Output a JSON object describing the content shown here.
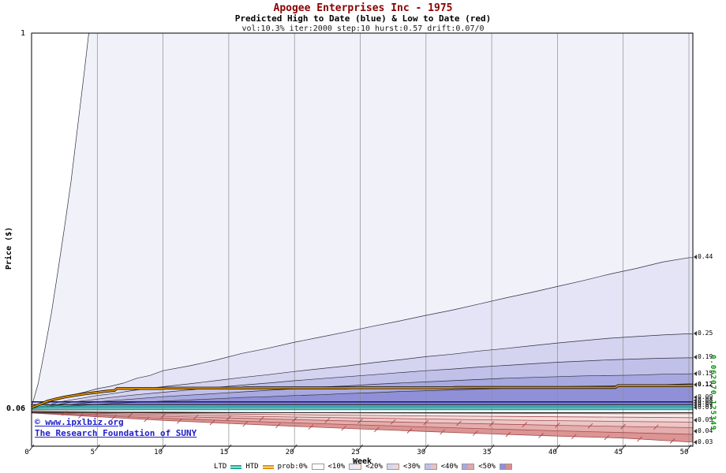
{
  "title": {
    "line1": "Apogee Enterprises Inc - 1975",
    "line2": "Predicted High to Date (blue) &  Low to Date (red)",
    "line3": "vol:10.3% iter:2000 step:10 hurst:0.57 drift:0.07/0"
  },
  "axes": {
    "y_label": "Price ($)",
    "x_label": "Week",
    "y_top": "1",
    "y_start": "0.06",
    "x_ticks": [
      "0",
      "5",
      "10",
      "15",
      "20",
      "25",
      "30",
      "35",
      "40",
      "45",
      "50"
    ]
  },
  "watermark": {
    "line1": "© www.ipxlbiz.org",
    "line2": "The Research Foundation of SUNY"
  },
  "right_green_label": "0.062070.125349",
  "right_labels": [
    {
      "text": "0.44",
      "price": 0.44
    },
    {
      "text": "0.25",
      "price": 0.25
    },
    {
      "text": "0.19",
      "price": 0.19
    },
    {
      "text": "0.15",
      "price": 0.15
    },
    {
      "text": "0.12",
      "price": 0.121,
      "bold": true
    },
    {
      "text": "0.09",
      "price": 0.0905
    },
    {
      "text": "0.08",
      "price": 0.0825
    },
    {
      "text": "0.08",
      "price": 0.0762
    },
    {
      "text": "0.07",
      "price": 0.0706
    },
    {
      "text": "0.07",
      "price": 0.0652
    },
    {
      "text": "0.05",
      "price": 0.0502
    },
    {
      "text": "0.04",
      "price": 0.0402
    },
    {
      "text": "0.03",
      "price": 0.0305
    }
  ],
  "legend": {
    "ltd_label": "LTD",
    "ltd_color": "#18a898",
    "htd_label": "HTD",
    "htd_color": "#e09000",
    "prob_items": [
      {
        "label": "prob:0%",
        "blue": "#ffffff",
        "red": "#ffffff"
      },
      {
        "label": "<10%",
        "blue": "#e9e9f8",
        "red": "#f8e9e9"
      },
      {
        "label": "<20%",
        "blue": "#d6d6f1",
        "red": "#f1d6d6"
      },
      {
        "label": "<30%",
        "blue": "#c0c0ea",
        "red": "#eac0c0"
      },
      {
        "label": "<40%",
        "blue": "#a8a8e2",
        "red": "#e2a8a8"
      },
      {
        "label": "<50%",
        "blue": "#8f8fd8",
        "red": "#d88f8f"
      }
    ]
  },
  "chart_data": {
    "type": "area",
    "title": "Apogee Enterprises Inc - 1975, predicted high-to-date / low-to-date probability fan",
    "xlabel": "Week",
    "ylabel": "Price ($)",
    "xlim": [
      0,
      50
    ],
    "ylim": [
      0.03,
      1.0
    ],
    "start_price": 0.06,
    "gridline_weeks": [
      0,
      5,
      10,
      15,
      20,
      25,
      30,
      35,
      40,
      45,
      50
    ],
    "baseline_high": 0.0645,
    "baseline_low": 0.0596,
    "band_colors_high": [
      "#f1f1fa",
      "#e4e4f6",
      "#d4d4f0",
      "#c0c0e9",
      "#a9a9e1",
      "#9090d8"
    ],
    "band_colors_low": [
      "#fdf6f6",
      "#faeaea",
      "#f4dada",
      "#edc6c6",
      "#e5adad",
      "#dc9494"
    ],
    "high_envelopes": [
      {
        "prob": "0%",
        "points": [
          [
            0,
            0.068
          ],
          [
            0.5,
            0.125
          ],
          [
            1,
            0.21
          ],
          [
            1.5,
            0.3
          ],
          [
            2,
            0.405
          ],
          [
            2.5,
            0.515
          ],
          [
            3,
            0.63
          ],
          [
            3.5,
            0.765
          ],
          [
            4,
            0.9
          ],
          [
            4.35,
            1.0
          ]
        ]
      },
      {
        "prob": "10%",
        "points": [
          [
            0,
            0.066
          ],
          [
            1,
            0.074
          ],
          [
            2,
            0.088
          ],
          [
            3,
            0.097
          ],
          [
            4,
            0.104
          ],
          [
            5,
            0.113
          ],
          [
            6,
            0.119
          ],
          [
            7,
            0.127
          ],
          [
            8,
            0.139
          ],
          [
            9,
            0.146
          ],
          [
            10,
            0.158
          ],
          [
            12,
            0.17
          ],
          [
            14,
            0.184
          ],
          [
            16,
            0.201
          ],
          [
            18,
            0.214
          ],
          [
            20,
            0.229
          ],
          [
            22,
            0.242
          ],
          [
            24,
            0.255
          ],
          [
            26,
            0.269
          ],
          [
            28,
            0.282
          ],
          [
            30,
            0.296
          ],
          [
            32,
            0.309
          ],
          [
            34,
            0.324
          ],
          [
            36,
            0.339
          ],
          [
            38,
            0.353
          ],
          [
            40,
            0.368
          ],
          [
            42,
            0.383
          ],
          [
            44,
            0.399
          ],
          [
            46,
            0.413
          ],
          [
            48,
            0.429
          ],
          [
            50,
            0.44
          ]
        ]
      },
      {
        "prob": "20%",
        "points": [
          [
            0,
            0.0655
          ],
          [
            1,
            0.07
          ],
          [
            2,
            0.079
          ],
          [
            3,
            0.085
          ],
          [
            4,
            0.09
          ],
          [
            5,
            0.096
          ],
          [
            6,
            0.1
          ],
          [
            7,
            0.105
          ],
          [
            8,
            0.11
          ],
          [
            10,
            0.118
          ],
          [
            12,
            0.125
          ],
          [
            14,
            0.133
          ],
          [
            16,
            0.141
          ],
          [
            18,
            0.148
          ],
          [
            20,
            0.156
          ],
          [
            22,
            0.163
          ],
          [
            24,
            0.17
          ],
          [
            26,
            0.178
          ],
          [
            28,
            0.185
          ],
          [
            30,
            0.193
          ],
          [
            32,
            0.199
          ],
          [
            34,
            0.207
          ],
          [
            36,
            0.213
          ],
          [
            38,
            0.22
          ],
          [
            40,
            0.227
          ],
          [
            42,
            0.233
          ],
          [
            44,
            0.239
          ],
          [
            46,
            0.243
          ],
          [
            48,
            0.247
          ],
          [
            50,
            0.25
          ]
        ]
      },
      {
        "prob": "30%",
        "points": [
          [
            0,
            0.065
          ],
          [
            1,
            0.068
          ],
          [
            2,
            0.074
          ],
          [
            3,
            0.079
          ],
          [
            4,
            0.083
          ],
          [
            5,
            0.087
          ],
          [
            6,
            0.091
          ],
          [
            8,
            0.098
          ],
          [
            10,
            0.104
          ],
          [
            12,
            0.11
          ],
          [
            14,
            0.116
          ],
          [
            16,
            0.122
          ],
          [
            18,
            0.127
          ],
          [
            20,
            0.133
          ],
          [
            22,
            0.138
          ],
          [
            24,
            0.143
          ],
          [
            26,
            0.148
          ],
          [
            28,
            0.153
          ],
          [
            30,
            0.158
          ],
          [
            32,
            0.162
          ],
          [
            34,
            0.167
          ],
          [
            36,
            0.171
          ],
          [
            38,
            0.175
          ],
          [
            40,
            0.179
          ],
          [
            42,
            0.182
          ],
          [
            44,
            0.185
          ],
          [
            46,
            0.187
          ],
          [
            48,
            0.189
          ],
          [
            50,
            0.19
          ]
        ]
      },
      {
        "prob": "40%",
        "points": [
          [
            0,
            0.0648
          ],
          [
            1,
            0.067
          ],
          [
            2,
            0.071
          ],
          [
            3,
            0.074
          ],
          [
            4,
            0.077
          ],
          [
            5,
            0.08
          ],
          [
            6,
            0.083
          ],
          [
            8,
            0.088
          ],
          [
            10,
            0.093
          ],
          [
            12,
            0.097
          ],
          [
            14,
            0.101
          ],
          [
            16,
            0.105
          ],
          [
            18,
            0.109
          ],
          [
            20,
            0.113
          ],
          [
            22,
            0.117
          ],
          [
            24,
            0.12
          ],
          [
            26,
            0.124
          ],
          [
            28,
            0.127
          ],
          [
            30,
            0.13
          ],
          [
            32,
            0.133
          ],
          [
            34,
            0.136
          ],
          [
            36,
            0.139
          ],
          [
            38,
            0.141
          ],
          [
            40,
            0.143
          ],
          [
            42,
            0.145
          ],
          [
            44,
            0.146
          ],
          [
            46,
            0.147
          ],
          [
            48,
            0.149
          ],
          [
            50,
            0.15
          ]
        ]
      },
      {
        "prob": "50%",
        "points": [
          [
            0,
            0.0645
          ],
          [
            1,
            0.066
          ],
          [
            2,
            0.068
          ],
          [
            3,
            0.07
          ],
          [
            4,
            0.072
          ],
          [
            5,
            0.074
          ],
          [
            6,
            0.076
          ],
          [
            8,
            0.079
          ],
          [
            10,
            0.082
          ],
          [
            12,
            0.085
          ],
          [
            14,
            0.088
          ],
          [
            16,
            0.091
          ],
          [
            18,
            0.093
          ],
          [
            20,
            0.096
          ],
          [
            22,
            0.098
          ],
          [
            24,
            0.101
          ],
          [
            26,
            0.103
          ],
          [
            28,
            0.106
          ],
          [
            30,
            0.108
          ],
          [
            32,
            0.11
          ],
          [
            34,
            0.112
          ],
          [
            36,
            0.114
          ],
          [
            38,
            0.116
          ],
          [
            40,
            0.118
          ],
          [
            42,
            0.119
          ],
          [
            44,
            0.12
          ],
          [
            46,
            0.121
          ],
          [
            48,
            0.123
          ],
          [
            50,
            0.125
          ]
        ]
      }
    ],
    "low_envelopes": [
      {
        "prob": "50%",
        "points": [
          [
            0,
            0.0592
          ],
          [
            5,
            0.0586
          ],
          [
            10,
            0.0582
          ],
          [
            15,
            0.0578
          ],
          [
            20,
            0.0575
          ],
          [
            25,
            0.0573
          ],
          [
            30,
            0.0571
          ],
          [
            35,
            0.0569
          ],
          [
            40,
            0.0568
          ],
          [
            45,
            0.0566
          ],
          [
            50,
            0.0565
          ]
        ]
      },
      {
        "prob": "40%",
        "points": [
          [
            0,
            0.0588
          ],
          [
            5,
            0.0578
          ],
          [
            10,
            0.057
          ],
          [
            15,
            0.0563
          ],
          [
            20,
            0.0557
          ],
          [
            25,
            0.0551
          ],
          [
            30,
            0.0546
          ],
          [
            35,
            0.0542
          ],
          [
            40,
            0.0538
          ],
          [
            45,
            0.0534
          ],
          [
            50,
            0.053
          ]
        ]
      },
      {
        "prob": "30%",
        "points": [
          [
            0,
            0.0584
          ],
          [
            5,
            0.057
          ],
          [
            10,
            0.0558
          ],
          [
            15,
            0.0546
          ],
          [
            20,
            0.0536
          ],
          [
            25,
            0.0527
          ],
          [
            30,
            0.0518
          ],
          [
            35,
            0.051
          ],
          [
            40,
            0.0503
          ],
          [
            45,
            0.0496
          ],
          [
            50,
            0.049
          ]
        ]
      },
      {
        "prob": "20%",
        "points": [
          [
            0,
            0.058
          ],
          [
            5,
            0.056
          ],
          [
            10,
            0.0543
          ],
          [
            15,
            0.0527
          ],
          [
            20,
            0.0512
          ],
          [
            25,
            0.0498
          ],
          [
            30,
            0.0485
          ],
          [
            35,
            0.0473
          ],
          [
            40,
            0.0461
          ],
          [
            45,
            0.045
          ],
          [
            50,
            0.044
          ]
        ]
      },
      {
        "prob": "10%",
        "points": [
          [
            0,
            0.0576
          ],
          [
            5,
            0.0549
          ],
          [
            10,
            0.0525
          ],
          [
            15,
            0.0503
          ],
          [
            20,
            0.0483
          ],
          [
            25,
            0.0464
          ],
          [
            30,
            0.0446
          ],
          [
            35,
            0.0428
          ],
          [
            40,
            0.0411
          ],
          [
            45,
            0.0395
          ],
          [
            50,
            0.038
          ]
        ]
      },
      {
        "prob": "0%",
        "points": [
          [
            0,
            0.0572
          ],
          [
            5,
            0.0538
          ],
          [
            10,
            0.0506
          ],
          [
            15,
            0.0478
          ],
          [
            20,
            0.0452
          ],
          [
            25,
            0.0428
          ],
          [
            30,
            0.0405
          ],
          [
            35,
            0.0383
          ],
          [
            40,
            0.0363
          ],
          [
            45,
            0.0345
          ],
          [
            50,
            0.031
          ]
        ]
      }
    ],
    "htd_line": {
      "name": "HTD",
      "color": "#e09000",
      "points": [
        [
          0,
          0.0655
        ],
        [
          0.3,
          0.07
        ],
        [
          0.8,
          0.076
        ],
        [
          1.2,
          0.082
        ],
        [
          1.8,
          0.087
        ],
        [
          2.5,
          0.092
        ],
        [
          3.2,
          0.096
        ],
        [
          4,
          0.1
        ],
        [
          4.8,
          0.103
        ],
        [
          5.5,
          0.106
        ],
        [
          6.3,
          0.1085
        ],
        [
          6.5,
          0.1135
        ],
        [
          10,
          0.1135
        ],
        [
          10.2,
          0.1145
        ],
        [
          16,
          0.1145
        ],
        [
          16.2,
          0.115
        ],
        [
          24,
          0.115
        ],
        [
          24.2,
          0.1155
        ],
        [
          32,
          0.1155
        ],
        [
          32.2,
          0.116
        ],
        [
          44.4,
          0.116
        ],
        [
          44.6,
          0.1205
        ],
        [
          50,
          0.1205
        ]
      ]
    },
    "h_lines": [
      {
        "name": "navy-band-line",
        "price": 0.08,
        "color": "#1a1a80",
        "width": 1.6
      },
      {
        "name": "black-band-line",
        "price": 0.0735,
        "color": "#111111",
        "width": 1
      },
      {
        "name": "ltd-line-upper",
        "price": 0.0672,
        "color": "#18a898",
        "width": 2
      },
      {
        "name": "ltd-line-lower",
        "price": 0.0615,
        "color": "#18a898",
        "width": 2
      },
      {
        "name": "black-band-line-low",
        "price": 0.0575,
        "color": "#222222",
        "width": 1
      }
    ],
    "hatch_rows": [
      {
        "envelope_index": 3,
        "start": 2.5,
        "end": 47.5,
        "step": 2.5
      },
      {
        "envelope_index": 5,
        "start": 3.75,
        "end": 48.75,
        "step": 2.5
      }
    ]
  }
}
